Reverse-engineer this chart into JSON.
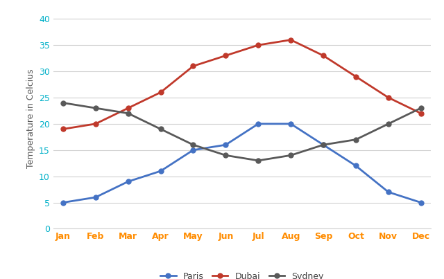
{
  "months": [
    "Jan",
    "Feb",
    "Mar",
    "Apr",
    "May",
    "Jun",
    "Jul",
    "Aug",
    "Sep",
    "Oct",
    "Nov",
    "Dec"
  ],
  "paris": [
    5,
    6,
    9,
    11,
    15,
    16,
    20,
    20,
    16,
    12,
    7,
    5
  ],
  "dubai": [
    19,
    20,
    23,
    26,
    31,
    33,
    35,
    36,
    33,
    29,
    25,
    22
  ],
  "sydney": [
    24,
    23,
    22,
    19,
    16,
    14,
    13,
    14,
    16,
    17,
    20,
    23
  ],
  "paris_color": "#4472C4",
  "dubai_color": "#C0392B",
  "sydney_color": "#595959",
  "ytick_color": "#00B0C8",
  "xtick_color": "#FF8C00",
  "ylabel": "Temperature in Celcius",
  "ylabel_color": "#595959",
  "ylim": [
    0,
    42
  ],
  "yticks": [
    0,
    5,
    10,
    15,
    20,
    25,
    30,
    35,
    40
  ],
  "background_color": "#FFFFFF",
  "grid_color": "#D0D0D0",
  "marker": "o",
  "linewidth": 2.0,
  "markersize": 5
}
